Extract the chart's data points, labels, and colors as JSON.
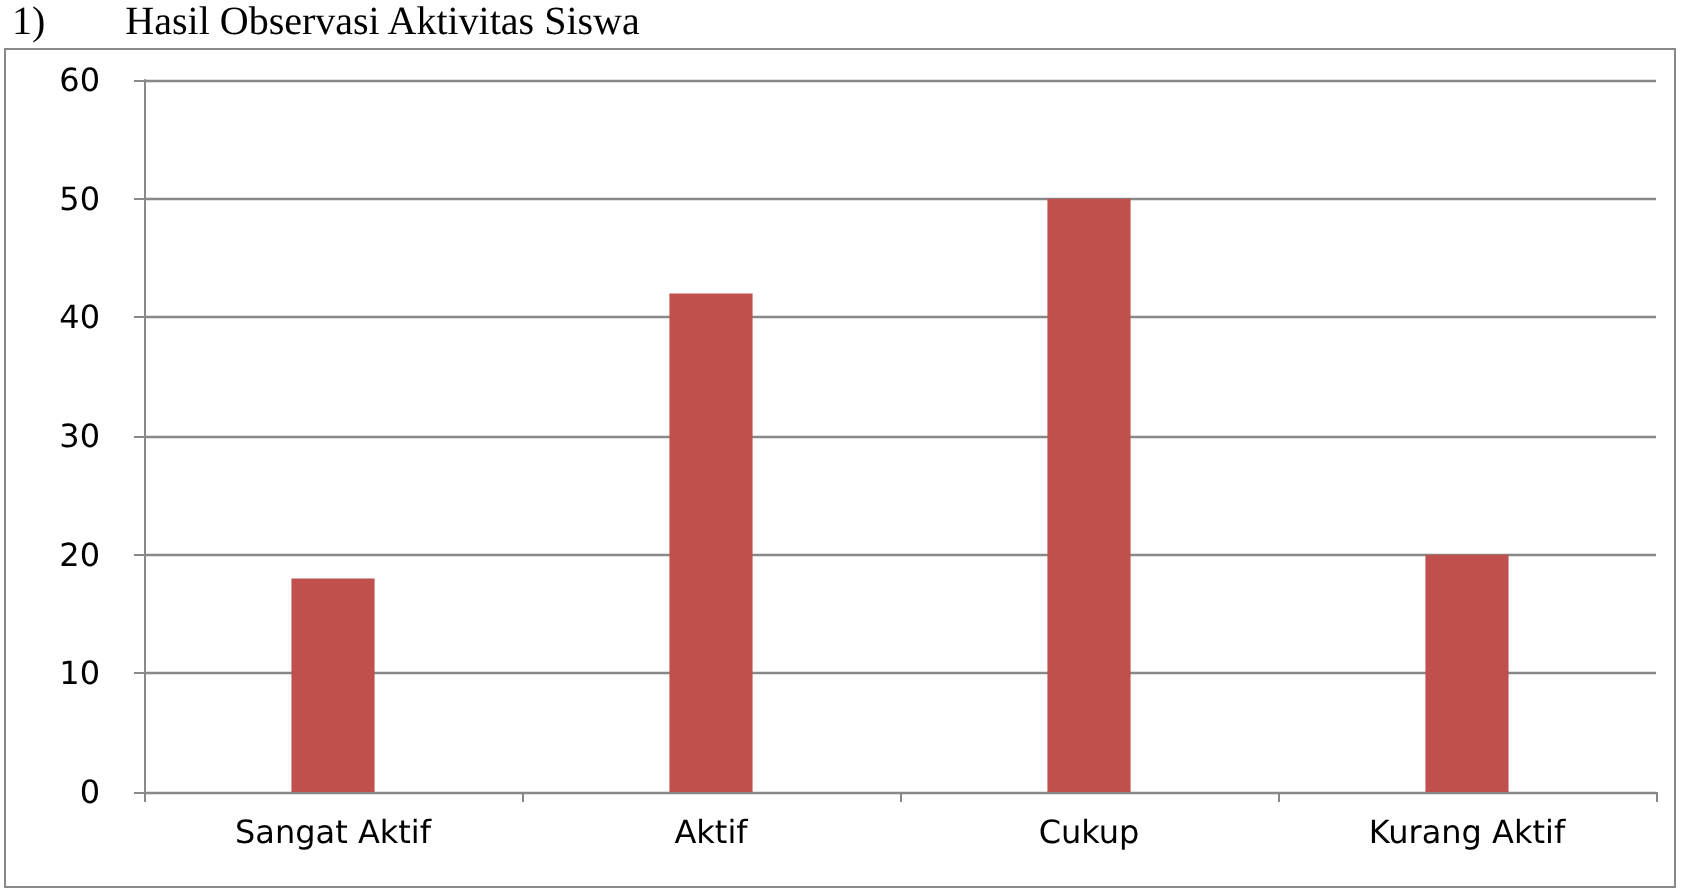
{
  "chart_data": {
    "type": "bar",
    "title": "1)        Hasil Observasi Aktivitas Siswa",
    "categories": [
      "Sangat Aktif",
      "Aktif",
      "Cukup",
      "Kurang Aktif"
    ],
    "values": [
      18,
      42,
      50,
      20
    ],
    "color": "#c0504d",
    "ylim": [
      0,
      60
    ],
    "yticks": [
      0,
      10,
      20,
      30,
      40,
      50,
      60
    ],
    "grid": "y"
  }
}
